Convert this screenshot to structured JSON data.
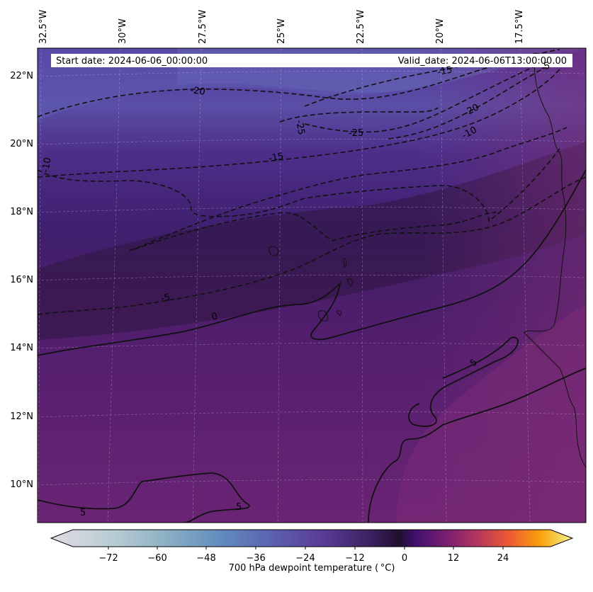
{
  "map": {
    "header": {
      "start": "Start date: 2024-06-06_00:00:00",
      "valid": "Valid_date: 2024-06-06T13:00:00.00"
    },
    "lon_labels": [
      "32.5°W",
      "30°W",
      "27.5°W",
      "25°W",
      "22.5°W",
      "20°W",
      "17.5°W"
    ],
    "lat_labels": [
      "22°N",
      "20°N",
      "18°N",
      "16°N",
      "14°N",
      "12°N",
      "10°N"
    ],
    "contour_labels": [
      "-20",
      "-15",
      "-25",
      "-25",
      "-20",
      "-15",
      "-10",
      "-10",
      "-15",
      "-5",
      "0",
      "5",
      "5",
      "5",
      "-25"
    ],
    "colorbar": {
      "label": "700 hPa dewpoint temperature ( °C)",
      "ticks": [
        "−72",
        "−60",
        "−48",
        "−36",
        "−24",
        "−12",
        "0",
        "12",
        "24"
      ]
    }
  },
  "colors": {
    "moist": "#782a75",
    "mid": "#4a1d68",
    "dry_band": "#5a55a6",
    "dark_band": "#3a1850"
  }
}
